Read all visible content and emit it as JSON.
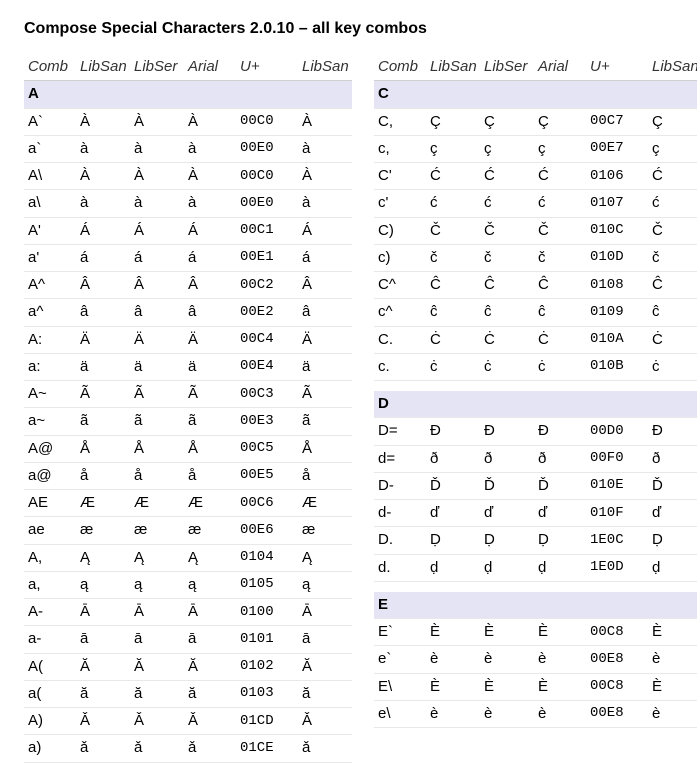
{
  "title": "Compose Special Characters 2.0.10 – all key combos",
  "headers": [
    "Comb",
    "LibSan",
    "LibSer",
    "Arial",
    "U+",
    "LibSan"
  ],
  "left": [
    {
      "type": "section",
      "label": "A"
    },
    {
      "comb": "A`",
      "c": "À",
      "u": "00C0"
    },
    {
      "comb": "a`",
      "c": "à",
      "u": "00E0"
    },
    {
      "comb": "A\\",
      "c": "À",
      "u": "00C0"
    },
    {
      "comb": "a\\",
      "c": "à",
      "u": "00E0"
    },
    {
      "comb": "A'",
      "c": "Á",
      "u": "00C1"
    },
    {
      "comb": "a'",
      "c": "á",
      "u": "00E1"
    },
    {
      "comb": "A^",
      "c": "Â",
      "u": "00C2"
    },
    {
      "comb": "a^",
      "c": "â",
      "u": "00E2"
    },
    {
      "comb": "A:",
      "c": "Ä",
      "u": "00C4"
    },
    {
      "comb": "a:",
      "c": "ä",
      "u": "00E4"
    },
    {
      "comb": "A~",
      "c": "Ã",
      "u": "00C3"
    },
    {
      "comb": "a~",
      "c": "ã",
      "u": "00E3"
    },
    {
      "comb": "A@",
      "c": "Å",
      "u": "00C5"
    },
    {
      "comb": "a@",
      "c": "å",
      "u": "00E5"
    },
    {
      "comb": "AE",
      "c": "Æ",
      "u": "00C6"
    },
    {
      "comb": "ae",
      "c": "æ",
      "u": "00E6"
    },
    {
      "comb": "A,",
      "c": "Ą",
      "u": "0104"
    },
    {
      "comb": "a,",
      "c": "ą",
      "u": "0105"
    },
    {
      "comb": "A-",
      "c": "Ā",
      "u": "0100"
    },
    {
      "comb": "a-",
      "c": "ā",
      "u": "0101"
    },
    {
      "comb": "A(",
      "c": "Ă",
      "u": "0102"
    },
    {
      "comb": "a(",
      "c": "ă",
      "u": "0103"
    },
    {
      "comb": "A)",
      "c": "Ǎ",
      "u": "01CD"
    },
    {
      "comb": "a)",
      "c": "ǎ",
      "u": "01CE"
    }
  ],
  "right": [
    {
      "type": "section",
      "label": "C"
    },
    {
      "comb": "C,",
      "c": "Ç",
      "u": "00C7"
    },
    {
      "comb": "c,",
      "c": "ç",
      "u": "00E7"
    },
    {
      "comb": "C'",
      "c": "Ć",
      "u": "0106"
    },
    {
      "comb": "c'",
      "c": "ć",
      "u": "0107"
    },
    {
      "comb": "C)",
      "c": "Č",
      "u": "010C"
    },
    {
      "comb": "c)",
      "c": "č",
      "u": "010D"
    },
    {
      "comb": "C^",
      "c": "Ĉ",
      "u": "0108"
    },
    {
      "comb": "c^",
      "c": "ĉ",
      "u": "0109"
    },
    {
      "comb": "C.",
      "c": "Ċ",
      "u": "010A"
    },
    {
      "comb": "c.",
      "c": "ċ",
      "u": "010B"
    },
    {
      "type": "spacer"
    },
    {
      "type": "section",
      "label": "D"
    },
    {
      "comb": "D=",
      "c": "Đ",
      "u": "00D0"
    },
    {
      "comb": "d=",
      "c": "ð",
      "u": "00F0"
    },
    {
      "comb": "D-",
      "c": "Ď",
      "u": "010E"
    },
    {
      "comb": "d-",
      "c": "ď",
      "u": "010F"
    },
    {
      "comb": "D.",
      "c": "Ḍ",
      "u": "1E0C"
    },
    {
      "comb": "d.",
      "c": "ḍ",
      "u": "1E0D"
    },
    {
      "type": "spacer"
    },
    {
      "type": "section",
      "label": "E"
    },
    {
      "comb": "E`",
      "c": "È",
      "u": "00C8"
    },
    {
      "comb": "e`",
      "c": "è",
      "u": "00E8"
    },
    {
      "comb": "E\\",
      "c": "È",
      "u": "00C8"
    },
    {
      "comb": "e\\",
      "c": "è",
      "u": "00E8"
    }
  ]
}
